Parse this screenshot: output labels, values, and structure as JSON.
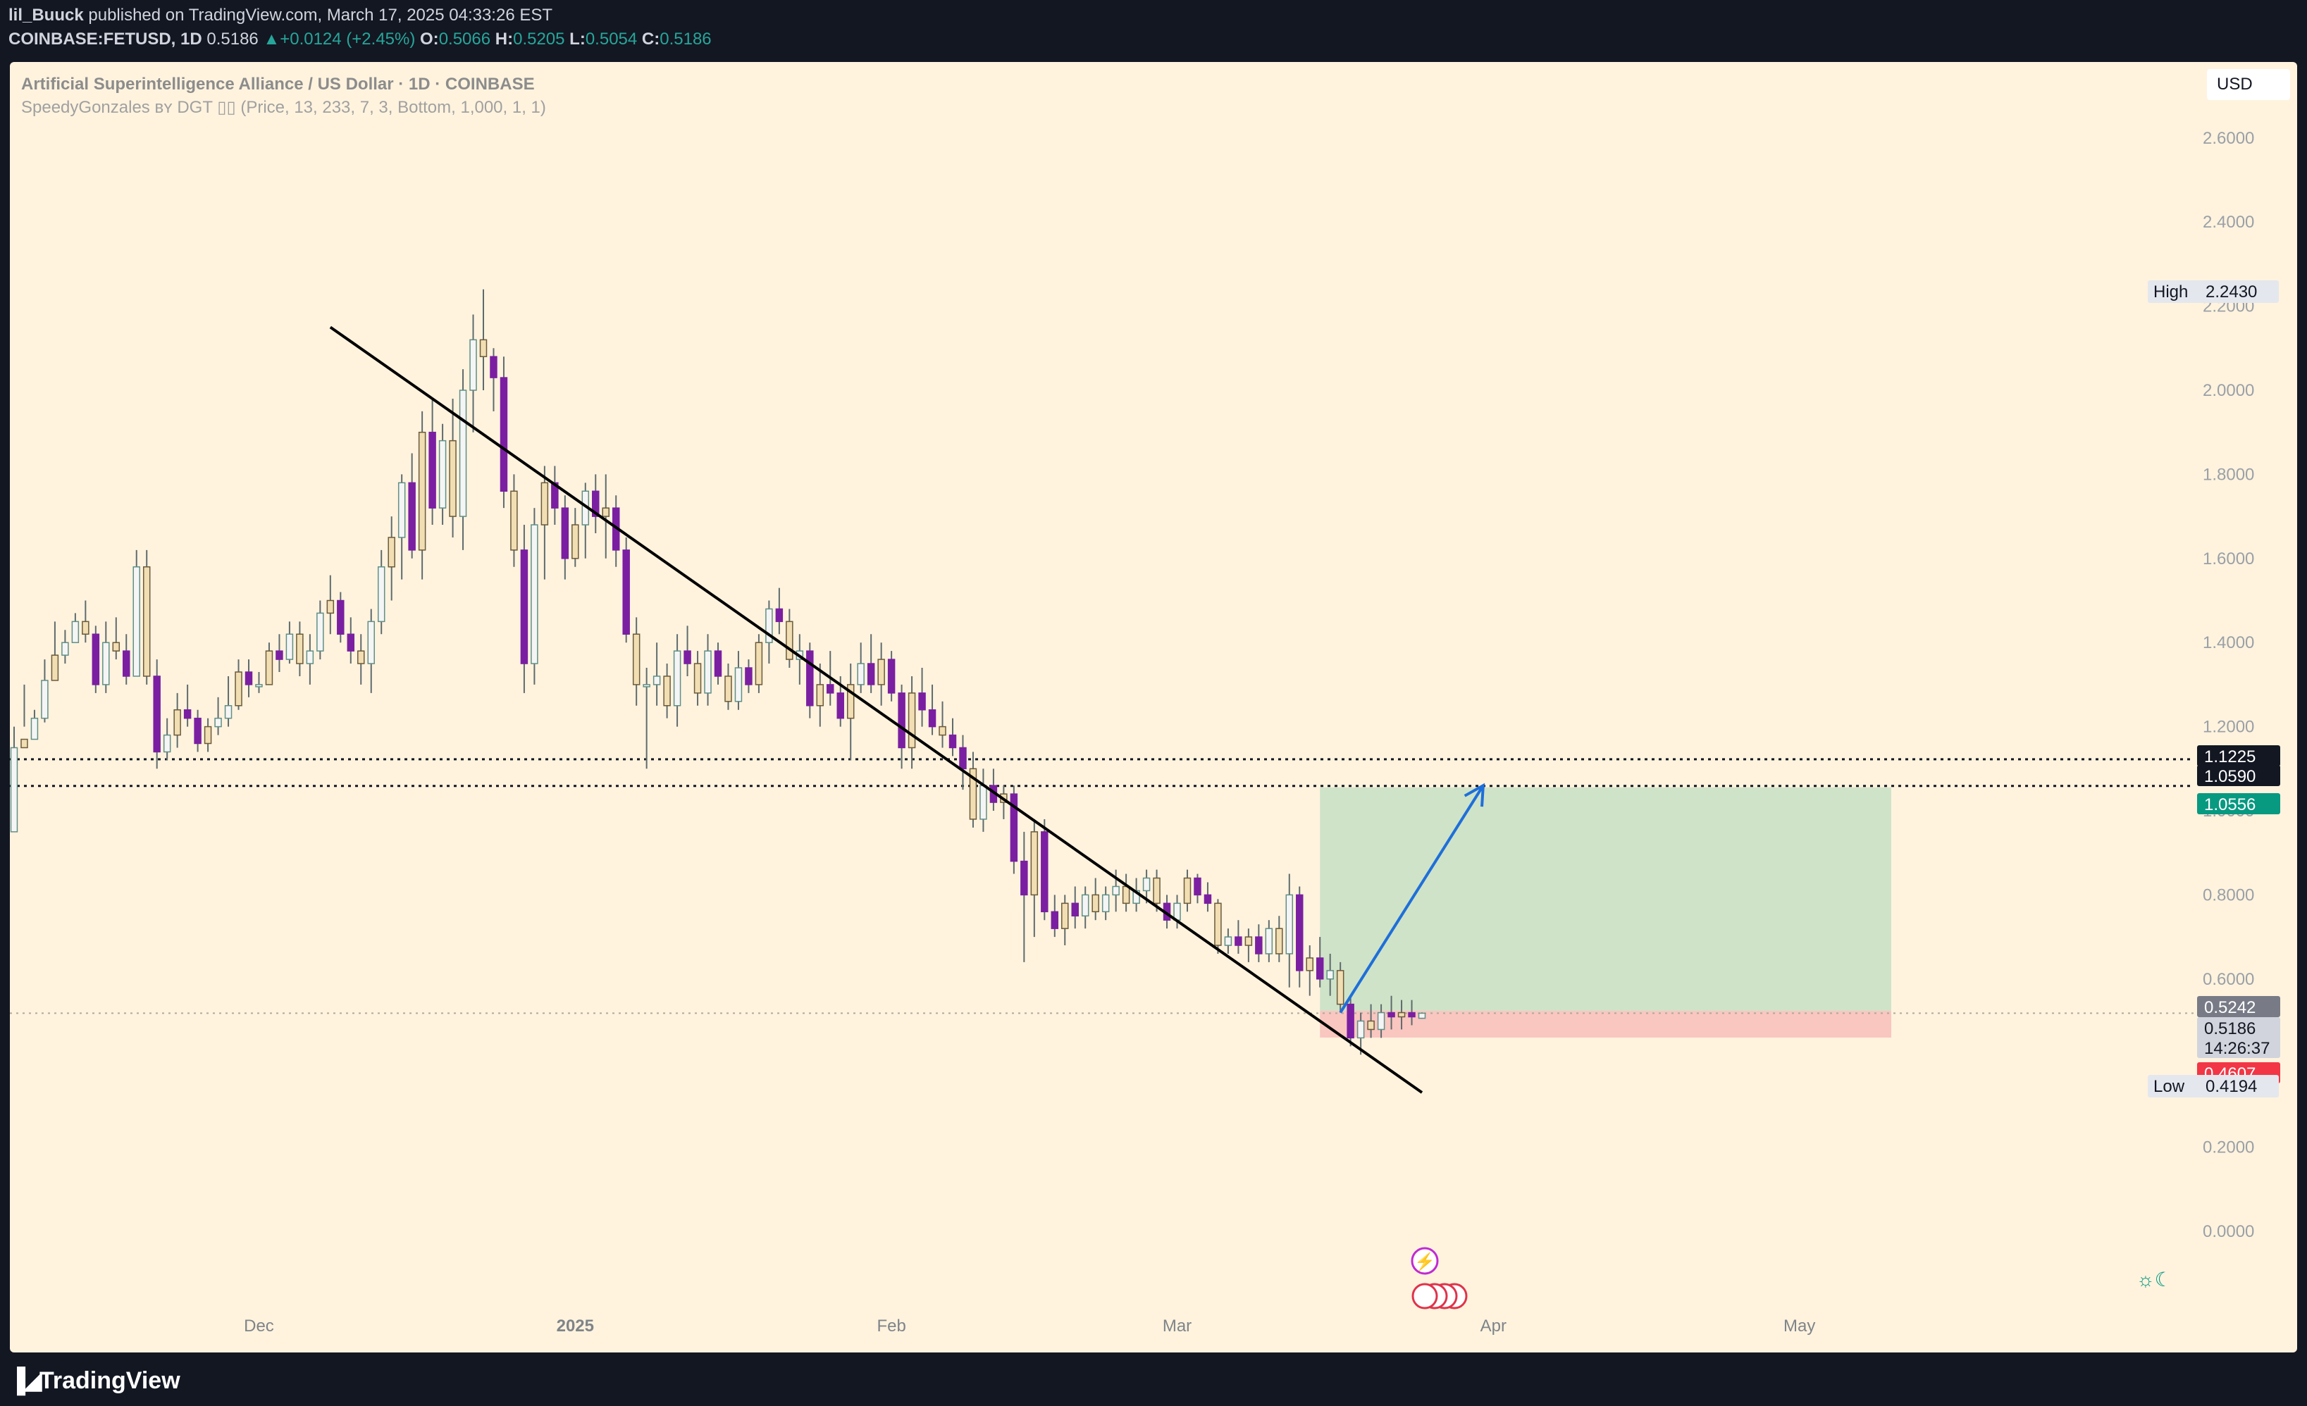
{
  "header": {
    "author": "lil_Buuck",
    "published_text": "published on TradingView.com, March 17, 2025 04:33:26 EST",
    "symbol": "COINBASE:FETUSD, 1D",
    "last": "0.5186",
    "change": "+0.0124 (+2.45%)",
    "o_label": "O:",
    "o": "0.5066",
    "h_label": "H:",
    "h": "0.5205",
    "l_label": "L:",
    "l": "0.5054",
    "c_label": "C:",
    "c": "0.5186"
  },
  "chart_title": "Artificial Superintelligence Alliance / US Dollar · 1D · COINBASE",
  "indicator_text": "SpeedyGonzales ʙʏ DGT ▯▯ (Price, 13, 233, 7, 3, Bottom, 1,000, 1, 1)",
  "currency_button": "USD",
  "footer": {
    "logo_text": "TradingView"
  },
  "colors": {
    "background": "#fff3de",
    "bull": "#f5f5f5",
    "bear": "#7b1fa2",
    "arrow_candle": "#f2deb3",
    "target_zone": "#cfe3c8",
    "stop_zone": "#f9c6c0",
    "projection_arrow": "#1e6fd9",
    "green_label": "#089981",
    "red_label": "#f23645"
  },
  "chart_data": {
    "type": "candlestick",
    "x_ticks": [
      "Dec",
      "2025",
      "Feb",
      "Mar",
      "Apr",
      "May"
    ],
    "y_ticks": [
      "2.6000",
      "2.4000",
      "2.2000",
      "2.0000",
      "1.8000",
      "1.6000",
      "1.4000",
      "1.2000",
      "1.0000",
      "0.8000",
      "0.6000",
      "0.2000",
      "0.0000"
    ],
    "y_tick_values": [
      2.6,
      2.4,
      2.2,
      2.0,
      1.8,
      1.6,
      1.4,
      1.2,
      1.0,
      0.8,
      0.6,
      0.2,
      0.0
    ],
    "ylim": [
      -0.25,
      2.95
    ],
    "first_date": "2024-11-07",
    "date_range": [
      "2024-11-07",
      "2025-05-10"
    ],
    "high": {
      "label": "High",
      "value": "2.2430"
    },
    "low": {
      "label": "Low",
      "value": "0.4194"
    },
    "price_labels": [
      {
        "value": "1.1225"
      },
      {
        "value": "1.0590"
      },
      {
        "value": "1.0556"
      },
      {
        "value": "0.5242"
      },
      {
        "value": "0.5186",
        "countdown": "14:26:37"
      },
      {
        "value": "0.4607"
      }
    ],
    "horizontal_levels": [
      1.1225,
      1.059,
      0.5186
    ],
    "trendline": {
      "start": [
        "2024-12-08",
        2.15
      ],
      "end": [
        "2025-03-25",
        0.33
      ]
    },
    "long_position": {
      "start": "2025-03-15",
      "end": "2025-05-10",
      "entry": 0.5242,
      "target": 1.0556,
      "stop": 0.4607
    },
    "projection_arrow": {
      "start": [
        "2025-03-17",
        0.52
      ],
      "end": [
        "2025-03-31",
        1.06
      ]
    },
    "candles": [
      [
        0.95,
        1.05,
        1.2,
        1.15
      ],
      [
        1.15,
        1.2,
        1.3,
        1.17
      ],
      [
        1.17,
        1.2,
        1.24,
        1.22
      ],
      [
        1.22,
        1.21,
        1.36,
        1.31
      ],
      [
        1.31,
        1.34,
        1.45,
        1.37
      ],
      [
        1.37,
        1.35,
        1.43,
        1.4
      ],
      [
        1.4,
        1.4,
        1.47,
        1.45
      ],
      [
        1.45,
        1.4,
        1.5,
        1.42
      ],
      [
        1.42,
        1.28,
        1.44,
        1.3
      ],
      [
        1.3,
        1.28,
        1.45,
        1.4
      ],
      [
        1.4,
        1.36,
        1.46,
        1.38
      ],
      [
        1.38,
        1.3,
        1.42,
        1.32
      ],
      [
        1.32,
        1.32,
        1.62,
        1.58
      ],
      [
        1.58,
        1.3,
        1.62,
        1.32
      ],
      [
        1.32,
        1.1,
        1.36,
        1.14
      ],
      [
        1.14,
        1.12,
        1.22,
        1.18
      ],
      [
        1.18,
        1.15,
        1.28,
        1.24
      ],
      [
        1.24,
        1.2,
        1.3,
        1.22
      ],
      [
        1.22,
        1.14,
        1.24,
        1.16
      ],
      [
        1.16,
        1.14,
        1.22,
        1.2
      ],
      [
        1.2,
        1.18,
        1.27,
        1.22
      ],
      [
        1.22,
        1.2,
        1.32,
        1.25
      ],
      [
        1.25,
        1.24,
        1.36,
        1.33
      ],
      [
        1.33,
        1.27,
        1.36,
        1.3
      ],
      [
        1.3,
        1.28,
        1.33,
        1.3
      ],
      [
        1.3,
        1.3,
        1.4,
        1.38
      ],
      [
        1.38,
        1.33,
        1.42,
        1.36
      ],
      [
        1.36,
        1.35,
        1.45,
        1.42
      ],
      [
        1.42,
        1.32,
        1.45,
        1.35
      ],
      [
        1.35,
        1.3,
        1.42,
        1.38
      ],
      [
        1.38,
        1.36,
        1.5,
        1.47
      ],
      [
        1.47,
        1.42,
        1.56,
        1.5
      ],
      [
        1.5,
        1.4,
        1.52,
        1.42
      ],
      [
        1.42,
        1.35,
        1.46,
        1.38
      ],
      [
        1.38,
        1.3,
        1.42,
        1.35
      ],
      [
        1.35,
        1.28,
        1.48,
        1.45
      ],
      [
        1.45,
        1.42,
        1.62,
        1.58
      ],
      [
        1.58,
        1.5,
        1.7,
        1.65
      ],
      [
        1.65,
        1.55,
        1.8,
        1.78
      ],
      [
        1.78,
        1.6,
        1.85,
        1.62
      ],
      [
        1.62,
        1.55,
        1.95,
        1.9
      ],
      [
        1.9,
        1.68,
        1.98,
        1.72
      ],
      [
        1.72,
        1.68,
        1.92,
        1.88
      ],
      [
        1.88,
        1.65,
        1.98,
        1.7
      ],
      [
        1.7,
        1.62,
        2.05,
        2.0
      ],
      [
        2.0,
        1.9,
        2.18,
        2.12
      ],
      [
        2.12,
        2.0,
        2.24,
        2.08
      ],
      [
        2.08,
        1.95,
        2.1,
        2.03
      ],
      [
        2.03,
        1.72,
        2.08,
        1.76
      ],
      [
        1.76,
        1.58,
        1.8,
        1.62
      ],
      [
        1.62,
        1.28,
        1.68,
        1.35
      ],
      [
        1.35,
        1.3,
        1.72,
        1.68
      ],
      [
        1.68,
        1.55,
        1.82,
        1.78
      ],
      [
        1.78,
        1.68,
        1.82,
        1.72
      ],
      [
        1.72,
        1.55,
        1.75,
        1.6
      ],
      [
        1.6,
        1.58,
        1.72,
        1.68
      ],
      [
        1.68,
        1.6,
        1.78,
        1.76
      ],
      [
        1.76,
        1.66,
        1.8,
        1.7
      ],
      [
        1.7,
        1.6,
        1.8,
        1.72
      ],
      [
        1.72,
        1.58,
        1.75,
        1.62
      ],
      [
        1.62,
        1.4,
        1.65,
        1.42
      ],
      [
        1.42,
        1.25,
        1.46,
        1.3
      ],
      [
        1.3,
        1.1,
        1.34,
        1.3
      ],
      [
        1.3,
        1.25,
        1.4,
        1.32
      ],
      [
        1.32,
        1.22,
        1.35,
        1.25
      ],
      [
        1.25,
        1.2,
        1.42,
        1.38
      ],
      [
        1.38,
        1.32,
        1.44,
        1.35
      ],
      [
        1.35,
        1.25,
        1.38,
        1.28
      ],
      [
        1.28,
        1.25,
        1.42,
        1.38
      ],
      [
        1.38,
        1.3,
        1.4,
        1.32
      ],
      [
        1.32,
        1.24,
        1.35,
        1.26
      ],
      [
        1.26,
        1.24,
        1.38,
        1.34
      ],
      [
        1.34,
        1.28,
        1.36,
        1.3
      ],
      [
        1.3,
        1.28,
        1.42,
        1.4
      ],
      [
        1.4,
        1.35,
        1.5,
        1.48
      ],
      [
        1.48,
        1.42,
        1.53,
        1.45
      ],
      [
        1.45,
        1.34,
        1.48,
        1.36
      ],
      [
        1.36,
        1.3,
        1.42,
        1.38
      ],
      [
        1.38,
        1.22,
        1.4,
        1.25
      ],
      [
        1.25,
        1.2,
        1.35,
        1.3
      ],
      [
        1.3,
        1.25,
        1.38,
        1.28
      ],
      [
        1.28,
        1.2,
        1.32,
        1.22
      ],
      [
        1.22,
        1.12,
        1.35,
        1.3
      ],
      [
        1.3,
        1.28,
        1.4,
        1.35
      ],
      [
        1.35,
        1.28,
        1.42,
        1.3
      ],
      [
        1.3,
        1.25,
        1.4,
        1.36
      ],
      [
        1.36,
        1.26,
        1.38,
        1.28
      ],
      [
        1.28,
        1.1,
        1.3,
        1.15
      ],
      [
        1.15,
        1.1,
        1.32,
        1.28
      ],
      [
        1.28,
        1.2,
        1.34,
        1.24
      ],
      [
        1.24,
        1.18,
        1.3,
        1.2
      ],
      [
        1.2,
        1.15,
        1.26,
        1.18
      ],
      [
        1.18,
        1.13,
        1.22,
        1.15
      ],
      [
        1.15,
        1.05,
        1.18,
        1.1
      ],
      [
        1.1,
        0.96,
        1.14,
        0.98
      ],
      [
        0.98,
        0.95,
        1.1,
        1.06
      ],
      [
        1.06,
        1.0,
        1.1,
        1.02
      ],
      [
        1.02,
        0.98,
        1.06,
        1.04
      ],
      [
        1.04,
        0.85,
        1.06,
        0.88
      ],
      [
        0.88,
        0.64,
        0.95,
        0.8
      ],
      [
        0.8,
        0.7,
        0.98,
        0.95
      ],
      [
        0.95,
        0.74,
        0.98,
        0.76
      ],
      [
        0.76,
        0.7,
        0.8,
        0.72
      ],
      [
        0.72,
        0.68,
        0.8,
        0.78
      ],
      [
        0.78,
        0.72,
        0.82,
        0.75
      ],
      [
        0.75,
        0.72,
        0.82,
        0.8
      ],
      [
        0.8,
        0.74,
        0.84,
        0.76
      ],
      [
        0.76,
        0.74,
        0.82,
        0.8
      ],
      [
        0.8,
        0.76,
        0.86,
        0.82
      ],
      [
        0.82,
        0.76,
        0.85,
        0.78
      ],
      [
        0.78,
        0.76,
        0.84,
        0.81
      ],
      [
        0.81,
        0.78,
        0.86,
        0.84
      ],
      [
        0.84,
        0.76,
        0.86,
        0.78
      ],
      [
        0.78,
        0.72,
        0.8,
        0.74
      ],
      [
        0.74,
        0.72,
        0.8,
        0.78
      ],
      [
        0.78,
        0.76,
        0.86,
        0.84
      ],
      [
        0.84,
        0.78,
        0.85,
        0.8
      ],
      [
        0.8,
        0.76,
        0.83,
        0.78
      ],
      [
        0.78,
        0.66,
        0.79,
        0.68
      ],
      [
        0.68,
        0.66,
        0.72,
        0.7
      ],
      [
        0.7,
        0.66,
        0.74,
        0.68
      ],
      [
        0.68,
        0.64,
        0.72,
        0.7
      ],
      [
        0.7,
        0.64,
        0.73,
        0.66
      ],
      [
        0.66,
        0.64,
        0.74,
        0.72
      ],
      [
        0.72,
        0.64,
        0.75,
        0.66
      ],
      [
        0.66,
        0.58,
        0.85,
        0.8
      ],
      [
        0.8,
        0.58,
        0.82,
        0.62
      ],
      [
        0.62,
        0.56,
        0.68,
        0.65
      ],
      [
        0.65,
        0.58,
        0.7,
        0.6
      ],
      [
        0.6,
        0.56,
        0.66,
        0.62
      ],
      [
        0.62,
        0.52,
        0.64,
        0.54
      ],
      [
        0.54,
        0.44,
        0.56,
        0.46
      ],
      [
        0.46,
        0.42,
        0.52,
        0.5
      ],
      [
        0.5,
        0.46,
        0.54,
        0.48
      ],
      [
        0.48,
        0.46,
        0.54,
        0.52
      ],
      [
        0.52,
        0.48,
        0.56,
        0.51
      ],
      [
        0.51,
        0.48,
        0.55,
        0.52
      ],
      [
        0.52,
        0.49,
        0.55,
        0.51
      ],
      [
        0.5066,
        0.5054,
        0.5205,
        0.5186
      ]
    ]
  }
}
